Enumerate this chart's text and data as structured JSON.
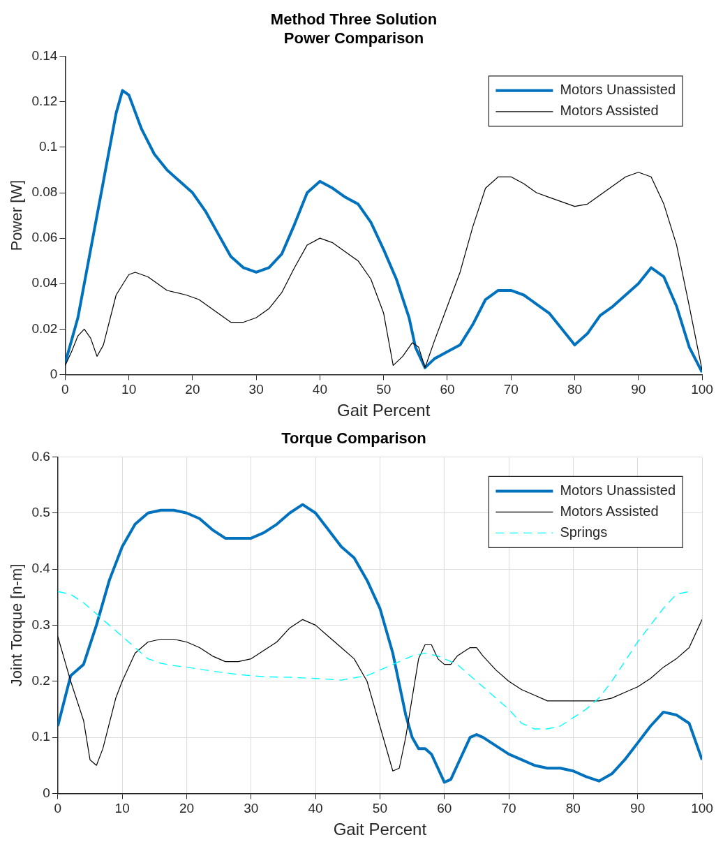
{
  "chart_data": [
    {
      "type": "line",
      "title": "Method Three Solution\nPower Comparison",
      "xlabel": "Gait Percent",
      "ylabel": "Power [W]",
      "xlim": [
        0,
        100
      ],
      "xticks": [
        0,
        10,
        20,
        30,
        40,
        50,
        60,
        70,
        80,
        90,
        100
      ],
      "ylim": [
        0,
        0.14
      ],
      "yticks": [
        0,
        0.02,
        0.04,
        0.06,
        0.08,
        0.1,
        0.12,
        0.14
      ],
      "grid": false,
      "legend": "top right",
      "series": [
        {
          "name": "Motors Unassisted",
          "color": "#0072bd",
          "line_style": "solid",
          "x": [
            0,
            2,
            4,
            6,
            8,
            9,
            10,
            12,
            14,
            16,
            18,
            20,
            22,
            24,
            26,
            28,
            30,
            32,
            34,
            36,
            38,
            40,
            42,
            44,
            46,
            48,
            50,
            52,
            54,
            55,
            56.5,
            58,
            60,
            62,
            64,
            66,
            68,
            70,
            72,
            74,
            76,
            78,
            80,
            82,
            84,
            86,
            88,
            90,
            92,
            94,
            96,
            98,
            100
          ],
          "values": [
            0.005,
            0.025,
            0.055,
            0.085,
            0.115,
            0.125,
            0.123,
            0.108,
            0.097,
            0.09,
            0.085,
            0.08,
            0.072,
            0.062,
            0.052,
            0.047,
            0.045,
            0.047,
            0.053,
            0.066,
            0.08,
            0.085,
            0.082,
            0.078,
            0.075,
            0.067,
            0.055,
            0.042,
            0.025,
            0.012,
            0.003,
            0.007,
            0.01,
            0.013,
            0.022,
            0.033,
            0.037,
            0.037,
            0.035,
            0.031,
            0.027,
            0.02,
            0.013,
            0.018,
            0.026,
            0.03,
            0.035,
            0.04,
            0.047,
            0.043,
            0.03,
            0.012,
            0.001
          ]
        },
        {
          "name": "Motors Assisted",
          "color": "#000000",
          "line_style": "solid",
          "x": [
            0,
            1,
            2,
            3,
            4,
            5,
            6,
            8,
            10,
            11,
            13,
            16,
            19,
            21,
            24,
            26,
            28,
            30,
            32,
            34,
            36,
            38,
            40,
            42,
            44,
            46,
            48,
            50,
            51.5,
            53,
            54.5,
            55.5,
            56.5,
            58,
            60,
            62,
            64,
            66,
            68,
            70,
            72,
            74,
            76,
            78,
            80,
            82,
            84,
            86,
            88,
            90,
            92,
            94,
            96,
            98,
            100
          ],
          "values": [
            0.004,
            0.01,
            0.017,
            0.02,
            0.016,
            0.008,
            0.013,
            0.035,
            0.044,
            0.045,
            0.043,
            0.037,
            0.035,
            0.033,
            0.027,
            0.023,
            0.023,
            0.025,
            0.029,
            0.036,
            0.047,
            0.057,
            0.06,
            0.058,
            0.054,
            0.05,
            0.042,
            0.027,
            0.004,
            0.008,
            0.014,
            0.012,
            0.003,
            0.015,
            0.03,
            0.045,
            0.065,
            0.082,
            0.087,
            0.087,
            0.084,
            0.08,
            0.078,
            0.076,
            0.074,
            0.075,
            0.079,
            0.083,
            0.087,
            0.089,
            0.087,
            0.075,
            0.057,
            0.03,
            0.002
          ]
        }
      ]
    },
    {
      "type": "line",
      "title": "Torque Comparison",
      "xlabel": "Gait Percent",
      "ylabel": "Joint Torque [n-m]",
      "xlim": [
        0,
        100
      ],
      "xticks": [
        0,
        10,
        20,
        30,
        40,
        50,
        60,
        70,
        80,
        90,
        100
      ],
      "ylim": [
        0,
        0.6
      ],
      "yticks": [
        0,
        0.1,
        0.2,
        0.3,
        0.4,
        0.5,
        0.6
      ],
      "grid": true,
      "legend": "top right",
      "series": [
        {
          "name": "Motors Unassisted",
          "color": "#0072bd",
          "line_style": "solid",
          "x": [
            0,
            2,
            3,
            4,
            6,
            8,
            10,
            12,
            14,
            16,
            18,
            20,
            22,
            24,
            26,
            28,
            30,
            32,
            34,
            36,
            38,
            40,
            42,
            44,
            46,
            48,
            50,
            52,
            54,
            55,
            56,
            57,
            58,
            60,
            61,
            62,
            64,
            65,
            66,
            68,
            70,
            72,
            74,
            76,
            78,
            80,
            82,
            84,
            86,
            88,
            90,
            92,
            94,
            96,
            98,
            100
          ],
          "values": [
            0.12,
            0.21,
            0.22,
            0.23,
            0.3,
            0.38,
            0.44,
            0.48,
            0.5,
            0.505,
            0.505,
            0.5,
            0.49,
            0.47,
            0.455,
            0.455,
            0.455,
            0.465,
            0.48,
            0.5,
            0.515,
            0.5,
            0.47,
            0.44,
            0.42,
            0.38,
            0.33,
            0.25,
            0.14,
            0.1,
            0.08,
            0.08,
            0.07,
            0.02,
            0.025,
            0.05,
            0.1,
            0.105,
            0.1,
            0.085,
            0.07,
            0.06,
            0.05,
            0.045,
            0.045,
            0.04,
            0.03,
            0.022,
            0.035,
            0.06,
            0.09,
            0.12,
            0.145,
            0.14,
            0.125,
            0.06
          ]
        },
        {
          "name": "Motors Assisted",
          "color": "#000000",
          "line_style": "solid",
          "x": [
            0,
            1,
            2,
            4,
            5,
            6,
            7,
            9,
            10,
            12,
            14,
            16,
            18,
            20,
            22,
            24,
            26,
            28,
            30,
            32,
            34,
            36,
            38,
            40,
            42,
            44,
            46,
            48,
            50,
            52,
            53,
            54,
            55,
            56,
            57,
            58,
            59,
            60,
            61,
            62,
            64,
            65,
            66,
            68,
            70,
            72,
            74,
            76,
            78,
            80,
            82,
            84,
            86,
            88,
            90,
            92,
            94,
            96,
            98,
            100
          ],
          "values": [
            0.28,
            0.24,
            0.2,
            0.13,
            0.06,
            0.05,
            0.08,
            0.17,
            0.2,
            0.25,
            0.27,
            0.275,
            0.275,
            0.27,
            0.26,
            0.245,
            0.235,
            0.235,
            0.24,
            0.255,
            0.27,
            0.295,
            0.31,
            0.3,
            0.28,
            0.26,
            0.24,
            0.2,
            0.12,
            0.04,
            0.045,
            0.1,
            0.17,
            0.24,
            0.265,
            0.265,
            0.24,
            0.23,
            0.23,
            0.245,
            0.26,
            0.26,
            0.245,
            0.22,
            0.2,
            0.185,
            0.175,
            0.165,
            0.165,
            0.165,
            0.165,
            0.165,
            0.17,
            0.18,
            0.19,
            0.205,
            0.225,
            0.24,
            0.26,
            0.31
          ]
        },
        {
          "name": "Springs",
          "color": "#00ffff",
          "line_style": "dashed",
          "x": [
            0,
            2,
            4,
            6,
            8,
            10,
            12,
            14,
            16,
            18,
            20,
            24,
            28,
            32,
            36,
            40,
            44,
            48,
            52,
            55,
            57,
            59,
            62,
            64,
            66,
            68,
            70,
            72,
            74,
            76,
            78,
            80,
            82,
            84,
            86,
            88,
            90,
            92,
            94,
            96,
            98
          ],
          "values": [
            0.36,
            0.355,
            0.34,
            0.32,
            0.3,
            0.28,
            0.26,
            0.24,
            0.232,
            0.228,
            0.225,
            0.218,
            0.212,
            0.208,
            0.207,
            0.205,
            0.202,
            0.21,
            0.23,
            0.245,
            0.25,
            0.245,
            0.23,
            0.21,
            0.19,
            0.17,
            0.15,
            0.125,
            0.115,
            0.115,
            0.12,
            0.135,
            0.15,
            0.17,
            0.2,
            0.235,
            0.27,
            0.3,
            0.33,
            0.355,
            0.36
          ]
        }
      ]
    }
  ]
}
